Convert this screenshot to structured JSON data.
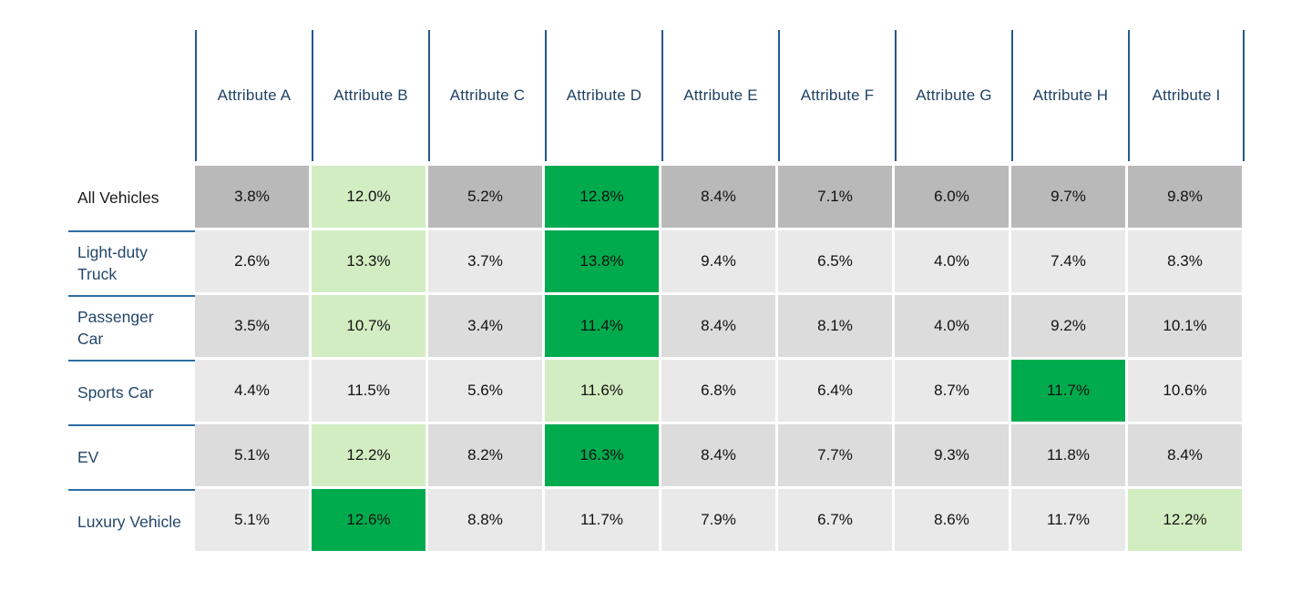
{
  "chart_data": {
    "type": "heatmap",
    "title": "",
    "columns": [
      "Attribute A",
      "Attribute B",
      "Attribute C",
      "Attribute D",
      "Attribute E",
      "Attribute F",
      "Attribute G",
      "Attribute H",
      "Attribute I"
    ],
    "rows": [
      "All Vehicles",
      "Light-duty Truck",
      "Passenger Car",
      "Sports Car",
      "EV",
      "Luxury Vehicle"
    ],
    "values": [
      [
        3.8,
        12.0,
        5.2,
        12.8,
        8.4,
        7.1,
        6.0,
        9.7,
        9.8
      ],
      [
        2.6,
        13.3,
        3.7,
        13.8,
        9.4,
        6.5,
        4.0,
        7.4,
        8.3
      ],
      [
        3.5,
        10.7,
        3.4,
        11.4,
        8.4,
        8.1,
        4.0,
        9.2,
        10.1
      ],
      [
        4.4,
        11.5,
        5.6,
        11.6,
        6.8,
        6.4,
        8.7,
        11.7,
        10.6
      ],
      [
        5.1,
        12.2,
        8.2,
        16.3,
        8.4,
        7.7,
        9.3,
        11.8,
        8.4
      ],
      [
        5.1,
        12.6,
        8.8,
        11.7,
        7.9,
        6.7,
        8.6,
        11.7,
        12.2
      ]
    ],
    "cell_labels": [
      [
        "3.8%",
        "12.0%",
        "5.2%",
        "12.8%",
        "8.4%",
        "7.1%",
        "6.0%",
        "9.7%",
        "9.8%"
      ],
      [
        "2.6%",
        "13.3%",
        "3.7%",
        "13.8%",
        "9.4%",
        "6.5%",
        "4.0%",
        "7.4%",
        "8.3%"
      ],
      [
        "3.5%",
        "10.7%",
        "3.4%",
        "11.4%",
        "8.4%",
        "8.1%",
        "4.0%",
        "9.2%",
        "10.1%"
      ],
      [
        "4.4%",
        "11.5%",
        "5.6%",
        "11.6%",
        "6.8%",
        "6.4%",
        "8.7%",
        "11.7%",
        "10.6%"
      ],
      [
        "5.1%",
        "12.2%",
        "8.2%",
        "16.3%",
        "8.4%",
        "7.7%",
        "9.3%",
        "11.8%",
        "8.4%"
      ],
      [
        "5.1%",
        "12.6%",
        "8.8%",
        "11.7%",
        "7.9%",
        "6.7%",
        "8.6%",
        "11.7%",
        "12.2%"
      ]
    ],
    "cell_colors": [
      [
        "#B9B9B9",
        "#D3EDC2",
        "#B9B9B9",
        "#00AB4E",
        "#B9B9B9",
        "#B9B9B9",
        "#B9B9B9",
        "#B9B9B9",
        "#B9B9B9"
      ],
      [
        "#E9E9E9",
        "#D3EDC2",
        "#E9E9E9",
        "#00AB4E",
        "#E9E9E9",
        "#E9E9E9",
        "#E9E9E9",
        "#E9E9E9",
        "#E9E9E9"
      ],
      [
        "#DCDCDC",
        "#D3EDC2",
        "#DCDCDC",
        "#00AB4E",
        "#DCDCDC",
        "#DCDCDC",
        "#DCDCDC",
        "#DCDCDC",
        "#DCDCDC"
      ],
      [
        "#E9E9E9",
        "#E9E9E9",
        "#E9E9E9",
        "#D3EDC2",
        "#E9E9E9",
        "#E9E9E9",
        "#E9E9E9",
        "#00AB4E",
        "#E9E9E9"
      ],
      [
        "#DCDCDC",
        "#D3EDC2",
        "#DCDCDC",
        "#00AB4E",
        "#DCDCDC",
        "#DCDCDC",
        "#DCDCDC",
        "#DCDCDC",
        "#DCDCDC"
      ],
      [
        "#E9E9E9",
        "#00AB4E",
        "#E9E9E9",
        "#E9E9E9",
        "#E9E9E9",
        "#E9E9E9",
        "#E9E9E9",
        "#E9E9E9",
        "#D3EDC2"
      ]
    ],
    "row_label_colors": [
      "#1A1A1A",
      "#24476B",
      "#24476B",
      "#24476B",
      "#24476B",
      "#24476B"
    ],
    "colors": {
      "header_text": "#1F4266",
      "header_line_blue": "#27578B",
      "row_separator_blue": "#2E6DA4",
      "base_dark_gray": "#B9B9B9",
      "base_light_gray": "#E9E9E9",
      "base_mid_gray": "#DCDCDC",
      "highlight_bright_green": "#00AB4E",
      "highlight_light_green": "#D3EDC2",
      "value_text": "#111111",
      "background": "#FFFFFF"
    },
    "xlabel": "",
    "ylabel": "",
    "grid": false,
    "legend_position": "none"
  }
}
